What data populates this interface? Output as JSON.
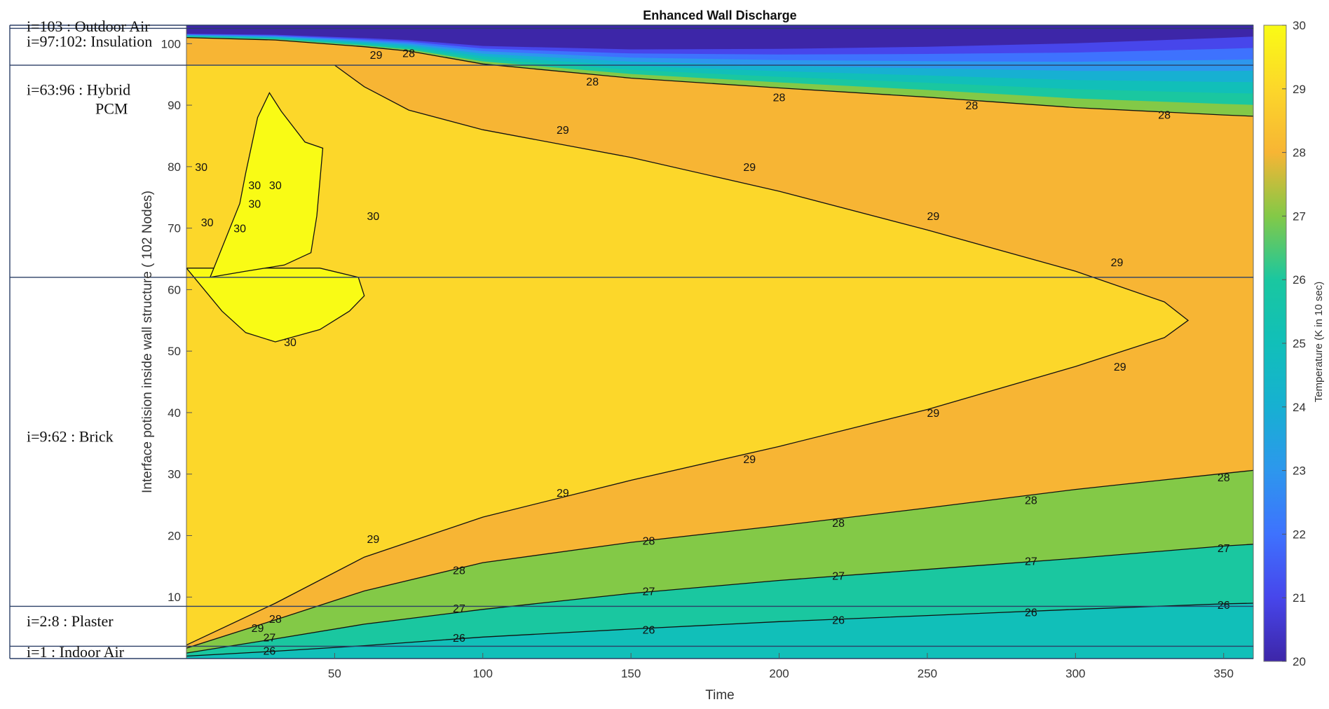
{
  "chart_data": {
    "type": "contour",
    "title": "Enhanced Wall Discharge",
    "xlabel": "Time",
    "ylabel": "Interface potision inside wall structure  ( 102 Nodes)",
    "xlim": [
      0,
      360
    ],
    "ylim": [
      0,
      103
    ],
    "xticks": [
      50,
      100,
      150,
      200,
      250,
      300,
      350
    ],
    "yticks": [
      10,
      20,
      30,
      40,
      50,
      60,
      70,
      80,
      90,
      100
    ],
    "colorbar": {
      "label": "Temperature (K in 10 sec)",
      "range": [
        20,
        30
      ],
      "ticks": [
        20,
        21,
        22,
        23,
        24,
        25,
        26,
        27,
        28,
        29,
        30
      ],
      "colors": [
        "#3d26a8",
        "#4746eb",
        "#3e72fe",
        "#2d97ed",
        "#17b0d2",
        "#11bfb9",
        "#1ac7a0",
        "#83c947",
        "#f7b534",
        "#fcd72a",
        "#f9fb15"
      ]
    },
    "layers": [
      {
        "label": "i=103     : Outdoor Air",
        "y_from": 102.5,
        "y_to": 103
      },
      {
        "label": "i=97:102: Insulation",
        "y_from": 96.5,
        "y_to": 102.5
      },
      {
        "label": "i=63:96 :  Hybrid",
        "label2": "PCM",
        "y_from": 62,
        "y_to": 96.5
      },
      {
        "label": "i=9:62 :  Brick",
        "y_from": 8.5,
        "y_to": 62
      },
      {
        "label": "i=2:8 :   Plaster",
        "y_from": 2,
        "y_to": 8.5
      },
      {
        "label": "i=1    :  Indoor Air",
        "y_from": 0,
        "y_to": 2
      }
    ],
    "contours": [
      {
        "level": 26,
        "points": [
          [
            0,
            0.4
          ],
          [
            30,
            1.2
          ],
          [
            60,
            2.1
          ],
          [
            100,
            3.5
          ],
          [
            150,
            4.8
          ],
          [
            200,
            6
          ],
          [
            250,
            7
          ],
          [
            300,
            8
          ],
          [
            350,
            8.9
          ],
          [
            360,
            9
          ]
        ],
        "labels": [
          [
            28,
            1.3
          ],
          [
            92,
            3.4
          ],
          [
            156,
            4.7
          ],
          [
            220,
            6.3
          ],
          [
            285,
            7.6
          ],
          [
            350,
            8.8
          ]
        ]
      },
      {
        "level": 27,
        "points": [
          [
            0,
            0.9
          ],
          [
            30,
            3.2
          ],
          [
            60,
            5.6
          ],
          [
            100,
            8
          ],
          [
            150,
            10.6
          ],
          [
            200,
            12.7
          ],
          [
            250,
            14.5
          ],
          [
            300,
            16.3
          ],
          [
            350,
            18.3
          ],
          [
            360,
            18.6
          ]
        ],
        "labels": [
          [
            28,
            3.5
          ],
          [
            92,
            8.2
          ],
          [
            156,
            11
          ],
          [
            220,
            13.5
          ],
          [
            285,
            15.9
          ],
          [
            350,
            18
          ]
        ]
      },
      {
        "level": 28,
        "points": [
          [
            0,
            1.7
          ],
          [
            30,
            6.3
          ],
          [
            60,
            11
          ],
          [
            100,
            15.6
          ],
          [
            150,
            18.9
          ],
          [
            200,
            21.6
          ],
          [
            250,
            24.5
          ],
          [
            300,
            27.5
          ],
          [
            350,
            30.1
          ],
          [
            360,
            30.6
          ]
        ],
        "labels": [
          [
            30,
            6.5
          ],
          [
            92,
            14.4
          ],
          [
            156,
            19.2
          ],
          [
            220,
            22.1
          ],
          [
            285,
            25.8
          ],
          [
            350,
            29.5
          ]
        ]
      },
      {
        "level": 29,
        "points": [
          [
            0,
            2.2
          ],
          [
            30,
            9
          ],
          [
            60,
            16.5
          ],
          [
            100,
            23
          ],
          [
            150,
            29
          ],
          [
            200,
            34.5
          ],
          [
            250,
            40.5
          ],
          [
            300,
            47.5
          ],
          [
            330,
            52.2
          ],
          [
            338,
            55
          ],
          [
            330,
            58
          ],
          [
            300,
            63
          ],
          [
            250,
            69.7
          ],
          [
            200,
            76
          ],
          [
            150,
            81.5
          ],
          [
            100,
            86
          ],
          [
            75,
            89.2
          ],
          [
            60,
            93
          ],
          [
            50,
            96.5
          ]
        ],
        "labels": [
          [
            24,
            5
          ],
          [
            63,
            19.5
          ],
          [
            127,
            27
          ],
          [
            190,
            32.5
          ],
          [
            252,
            40
          ],
          [
            315,
            47.5
          ],
          [
            314,
            64.5
          ],
          [
            252,
            72
          ],
          [
            190,
            80
          ],
          [
            127,
            86
          ],
          [
            64,
            98.2
          ]
        ]
      },
      {
        "level": 28,
        "points": [
          [
            0,
            101
          ],
          [
            30,
            100.6
          ],
          [
            60,
            99.5
          ],
          [
            75,
            98.8
          ],
          [
            100,
            96.7
          ],
          [
            150,
            94.4
          ],
          [
            200,
            92.8
          ],
          [
            250,
            91.3
          ],
          [
            300,
            89.6
          ],
          [
            350,
            88.4
          ],
          [
            360,
            88.2
          ]
        ],
        "labels": [
          [
            75,
            98.5
          ],
          [
            137,
            93.9
          ],
          [
            200,
            91.3
          ],
          [
            265,
            90
          ],
          [
            330,
            88.5
          ]
        ]
      }
    ],
    "region_30": {
      "patch": [
        [
          0,
          63.5
        ],
        [
          6,
          60
        ],
        [
          12,
          56.5
        ],
        [
          20,
          53
        ],
        [
          30,
          51.5
        ],
        [
          45,
          53.5
        ],
        [
          55,
          56.5
        ],
        [
          60,
          59
        ],
        [
          58,
          62
        ],
        [
          45,
          63.5
        ]
      ],
      "islands": [
        [
          [
            8,
            62
          ],
          [
            18,
            74
          ],
          [
            20,
            79
          ],
          [
            24,
            88
          ],
          [
            28,
            92
          ],
          [
            32,
            89
          ],
          [
            40,
            84
          ],
          [
            46,
            83
          ],
          [
            44,
            72
          ],
          [
            42,
            66
          ],
          [
            33,
            64
          ],
          [
            20,
            63
          ]
        ]
      ],
      "labels": [
        [
          35,
          51.5
        ],
        [
          5,
          80
        ],
        [
          7,
          71
        ],
        [
          23,
          77
        ],
        [
          23,
          74
        ],
        [
          30,
          77
        ],
        [
          18,
          70
        ],
        [
          63,
          72
        ]
      ]
    }
  }
}
